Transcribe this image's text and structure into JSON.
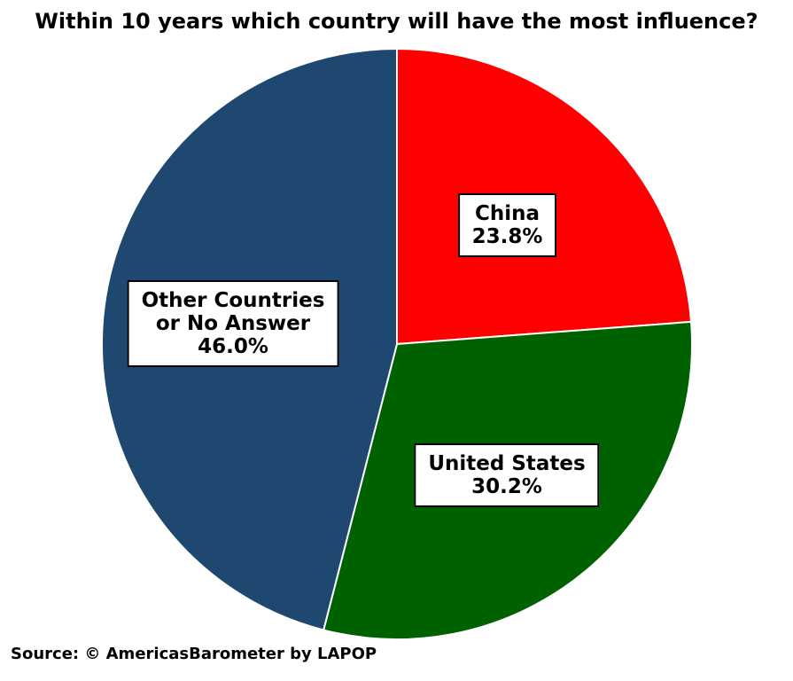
{
  "chart_data": {
    "type": "pie",
    "title": "Within 10 years which country will have the most influence?",
    "slices": [
      {
        "label": "China",
        "value": 23.8,
        "value_label": "23.8%",
        "color": "#ff0000"
      },
      {
        "label": "United States",
        "value": 30.2,
        "value_label": "30.2%",
        "color": "#006100"
      },
      {
        "label": "Other Countries or No Answer",
        "label_lines": [
          "Other Countries",
          "or No Answer"
        ],
        "value": 46.0,
        "value_label": "46.0%",
        "color": "#1f4870"
      }
    ],
    "legend": "none",
    "source": "Source: © AmericasBarometer by LAPOP"
  }
}
